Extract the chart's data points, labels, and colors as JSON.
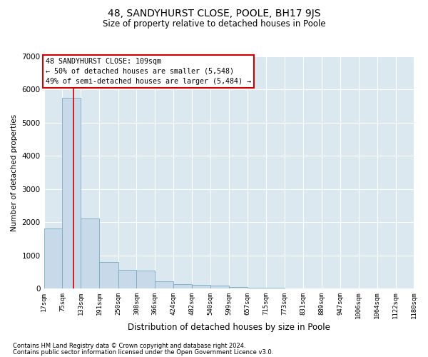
{
  "title": "48, SANDYHURST CLOSE, POOLE, BH17 9JS",
  "subtitle": "Size of property relative to detached houses in Poole",
  "xlabel": "Distribution of detached houses by size in Poole",
  "ylabel": "Number of detached properties",
  "bar_color": "#c8daea",
  "bar_edge_color": "#7aaabf",
  "background_color": "#dce8f0",
  "property_size": 109,
  "property_line_color": "#cc0000",
  "annotation_text": "48 SANDYHURST CLOSE: 109sqm\n← 50% of detached houses are smaller (5,548)\n49% of semi-detached houses are larger (5,484) →",
  "annotation_box_color": "#ffffff",
  "annotation_box_edge": "#cc0000",
  "footnote1": "Contains HM Land Registry data © Crown copyright and database right 2024.",
  "footnote2": "Contains public sector information licensed under the Open Government Licence v3.0.",
  "bin_edges": [
    17,
    75,
    133,
    191,
    250,
    308,
    366,
    424,
    482,
    540,
    599,
    657,
    715,
    773,
    831,
    889,
    947,
    1006,
    1064,
    1122,
    1180
  ],
  "bin_labels": [
    "17sqm",
    "75sqm",
    "133sqm",
    "191sqm",
    "250sqm",
    "308sqm",
    "366sqm",
    "424sqm",
    "482sqm",
    "540sqm",
    "599sqm",
    "657sqm",
    "715sqm",
    "773sqm",
    "831sqm",
    "889sqm",
    "947sqm",
    "1006sqm",
    "1064sqm",
    "1122sqm",
    "1180sqm"
  ],
  "counts": [
    1800,
    5750,
    2100,
    800,
    550,
    530,
    220,
    120,
    100,
    75,
    50,
    28,
    15,
    8,
    4,
    3,
    2,
    1,
    1,
    1
  ],
  "ylim": [
    0,
    7000
  ],
  "yticks": [
    0,
    1000,
    2000,
    3000,
    4000,
    5000,
    6000,
    7000
  ]
}
